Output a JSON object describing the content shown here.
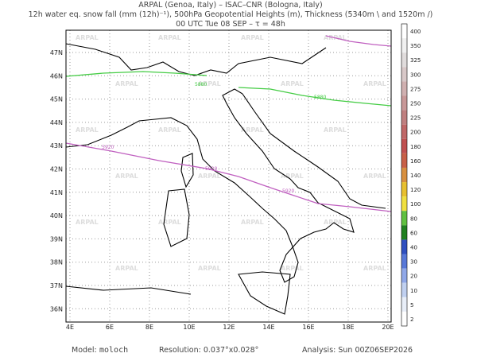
{
  "header": {
    "lines": [
      "ARPAL (Genoa, Italy)  –  ISAC–CNR (Bologna, Italy)",
      "12h water eq. snow fall (mm (12h)⁻¹), 500hPa Geopotential Heights (m), Thickness (5340m \\ and 1520m /)",
      "00 UTC Tue 08 SEP  –  τ = 48h"
    ]
  },
  "map": {
    "lon_labels": [
      "4E",
      "6E",
      "8E",
      "10E",
      "12E",
      "14E",
      "16E",
      "18E",
      "20E"
    ],
    "lat_labels": [
      "47N",
      "46N",
      "45N",
      "44N",
      "43N",
      "42N",
      "41N",
      "40N",
      "39N",
      "38N",
      "37N",
      "36N"
    ],
    "watermark": "ARPAL",
    "contour_labels": [
      {
        "text": "5880",
        "line": "green"
      },
      {
        "text": "5880",
        "line": "green"
      },
      {
        "text": "5920",
        "line": "magenta"
      },
      {
        "text": "5920",
        "line": "magenta"
      },
      {
        "text": "5920",
        "line": "magenta"
      }
    ]
  },
  "colorbar": {
    "labels": [
      "400",
      "350",
      "325",
      "300",
      "275",
      "250",
      "225",
      "200",
      "180",
      "160",
      "140",
      "120",
      "100",
      "80",
      "60",
      "40",
      "30",
      "20",
      "10",
      "5",
      "2"
    ],
    "colors": [
      "#ffffff",
      "#f0f0f0",
      "#e0dcdc",
      "#d8c8c8",
      "#d0b0b0",
      "#c89898",
      "#c08080",
      "#c06868",
      "#c05050",
      "#c86048",
      "#d89040",
      "#e8c030",
      "#f0e040",
      "#60c040",
      "#208020",
      "#3050c0",
      "#5878d8",
      "#90a8e8",
      "#c0d0f0",
      "#e8eef8",
      "#ffffff"
    ]
  },
  "footer": {
    "model_label": "Model:",
    "model": "moloch",
    "resolution": "Resolution: 0.037°x0.028°",
    "analysis": "Analysis: Sun 00Z06SEP2026"
  }
}
